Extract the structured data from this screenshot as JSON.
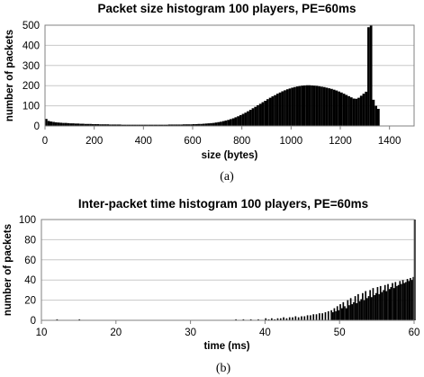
{
  "chart_data": [
    {
      "type": "bar",
      "title": "Packet size histogram 100 players, PE=60ms",
      "xlabel": "size (bytes)",
      "ylabel": "number of packets",
      "caption": "(a)",
      "xlim": [
        0,
        1500
      ],
      "ylim": [
        0,
        500
      ],
      "xticks": [
        "0",
        "200",
        "400",
        "600",
        "800",
        "1000",
        "1200",
        "1400"
      ],
      "yticks": [
        "0",
        "100",
        "200",
        "300",
        "400",
        "500"
      ],
      "grid": true,
      "bin_width": 10,
      "x": [
        0,
        10,
        20,
        30,
        40,
        50,
        60,
        70,
        80,
        90,
        100,
        110,
        120,
        130,
        140,
        150,
        160,
        170,
        180,
        190,
        200,
        210,
        220,
        230,
        240,
        250,
        260,
        270,
        280,
        290,
        300,
        310,
        320,
        330,
        340,
        350,
        360,
        370,
        380,
        390,
        400,
        410,
        420,
        430,
        440,
        450,
        460,
        470,
        480,
        490,
        500,
        510,
        520,
        530,
        540,
        550,
        560,
        570,
        580,
        590,
        600,
        610,
        620,
        630,
        640,
        650,
        660,
        670,
        680,
        690,
        700,
        710,
        720,
        730,
        740,
        750,
        760,
        770,
        780,
        790,
        800,
        810,
        820,
        830,
        840,
        850,
        860,
        870,
        880,
        890,
        900,
        910,
        920,
        930,
        940,
        950,
        960,
        970,
        980,
        990,
        1000,
        1010,
        1020,
        1030,
        1040,
        1050,
        1060,
        1070,
        1080,
        1090,
        1100,
        1110,
        1120,
        1130,
        1140,
        1150,
        1160,
        1170,
        1180,
        1190,
        1200,
        1210,
        1220,
        1230,
        1240,
        1250,
        1260,
        1270,
        1280,
        1290,
        1300,
        1310,
        1320,
        1330,
        1340,
        1350
      ],
      "values": [
        35,
        25,
        22,
        20,
        18,
        17,
        16,
        15,
        15,
        14,
        13,
        13,
        12,
        12,
        11,
        11,
        10,
        10,
        10,
        9,
        9,
        9,
        8,
        8,
        8,
        8,
        7,
        7,
        7,
        7,
        7,
        6,
        6,
        6,
        6,
        6,
        6,
        6,
        6,
        6,
        6,
        6,
        6,
        6,
        6,
        6,
        6,
        6,
        6,
        6,
        7,
        7,
        7,
        7,
        7,
        7,
        8,
        8,
        8,
        8,
        9,
        9,
        10,
        10,
        11,
        12,
        13,
        14,
        15,
        17,
        19,
        21,
        24,
        27,
        30,
        34,
        38,
        43,
        48,
        54,
        60,
        66,
        73,
        80,
        88,
        95,
        103,
        110,
        118,
        125,
        133,
        140,
        147,
        153,
        160,
        166,
        172,
        177,
        182,
        186,
        190,
        193,
        196,
        198,
        200,
        201,
        202,
        202,
        201,
        200,
        199,
        197,
        195,
        193,
        190,
        187,
        184,
        180,
        176,
        171,
        166,
        160,
        154,
        148,
        142,
        136,
        135,
        140,
        150,
        160,
        170,
        490,
        500,
        130,
        100,
        85
      ]
    },
    {
      "type": "bar",
      "title": "Inter-packet time histogram 100 players, PE=60ms",
      "xlabel": "time (ms)",
      "ylabel": "number of packets",
      "caption": "(b)",
      "xlim": [
        10,
        60
      ],
      "ylim": [
        0,
        100
      ],
      "xticks": [
        "10",
        "20",
        "30",
        "40",
        "50",
        "60"
      ],
      "yticks": [
        "0",
        "20",
        "40",
        "60",
        "80",
        "100"
      ],
      "grid": true,
      "bin_width": 0.2,
      "x": [
        12,
        15,
        36,
        37,
        38,
        39,
        40,
        40.4,
        40.8,
        41.2,
        41.6,
        42,
        42.4,
        42.8,
        43.2,
        43.6,
        44,
        44.4,
        44.8,
        45.2,
        45.6,
        46,
        46.4,
        46.8,
        47.2,
        47.6,
        48,
        48.4,
        48.8,
        49,
        49.2,
        49.4,
        49.6,
        49.8,
        50,
        50.2,
        50.4,
        50.6,
        50.8,
        51,
        51.2,
        51.4,
        51.6,
        51.8,
        52,
        52.2,
        52.4,
        52.6,
        52.8,
        53,
        53.2,
        53.4,
        53.6,
        53.8,
        54,
        54.2,
        54.4,
        54.6,
        54.8,
        55,
        55.2,
        55.4,
        55.6,
        55.8,
        56,
        56.2,
        56.4,
        56.6,
        56.8,
        57,
        57.2,
        57.4,
        57.6,
        57.8,
        58,
        58.2,
        58.4,
        58.6,
        58.8,
        59,
        59.2,
        59.4,
        59.6,
        59.8,
        60
      ],
      "values": [
        1,
        1,
        1,
        1,
        1,
        1,
        2,
        1,
        2,
        1,
        2,
        2,
        3,
        2,
        3,
        3,
        4,
        3,
        4,
        4,
        5,
        5,
        6,
        6,
        7,
        7,
        8,
        9,
        10,
        8,
        12,
        9,
        14,
        10,
        16,
        12,
        18,
        14,
        12,
        20,
        15,
        22,
        16,
        18,
        24,
        17,
        26,
        19,
        21,
        27,
        20,
        29,
        22,
        24,
        30,
        23,
        32,
        25,
        27,
        33,
        26,
        34,
        28,
        30,
        35,
        29,
        36,
        31,
        33,
        37,
        32,
        38,
        34,
        35,
        39,
        36,
        40,
        37,
        38,
        41,
        39,
        42,
        40,
        43,
        100
      ]
    }
  ]
}
